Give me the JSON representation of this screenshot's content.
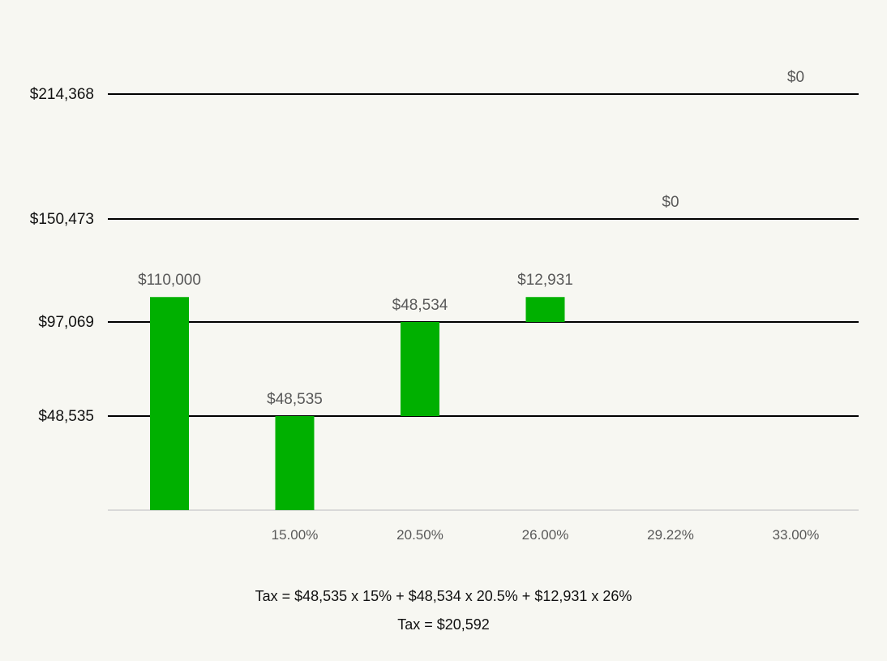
{
  "chart_data": {
    "type": "bar",
    "categories": [
      "",
      "15.00%",
      "20.50%",
      "26.00%",
      "29.22%",
      "33.00%"
    ],
    "bars": [
      {
        "category": "",
        "start": 0,
        "end": 110000,
        "label": "$110,000",
        "color": "#00b000"
      },
      {
        "category": "15.00%",
        "start": 0,
        "end": 48535,
        "label": "$48,535",
        "color": "#00b000"
      },
      {
        "category": "20.50%",
        "start": 48535,
        "end": 97069,
        "label": "$48,534",
        "color": "#00b000"
      },
      {
        "category": "26.00%",
        "start": 97069,
        "end": 110000,
        "label": "$12,931",
        "color": "#00b000"
      },
      {
        "category": "29.22%",
        "start": 150473,
        "end": 150473,
        "label": "$0",
        "color": "#00b000"
      },
      {
        "category": "33.00%",
        "start": 214368,
        "end": 214368,
        "label": "$0",
        "color": "#00b000"
      }
    ],
    "thresholds": [
      {
        "value": 48535,
        "label": "$48,535"
      },
      {
        "value": 97069,
        "label": "$97,069"
      },
      {
        "value": 150473,
        "label": "$150,473"
      },
      {
        "value": 214368,
        "label": "$214,368"
      }
    ],
    "ylim": [
      0,
      214368
    ],
    "grid": false
  },
  "formula": {
    "line1": "Tax = $48,535 x 15% + $48,534 x 20.5% + $12,931 x 26%",
    "line2": "Tax = $20,592"
  },
  "colors": {
    "background": "#f7f7f2",
    "bar": "#00b000",
    "threshold_line": "#000000",
    "axis_line": "#d9d9d9",
    "label_text": "#595959"
  }
}
